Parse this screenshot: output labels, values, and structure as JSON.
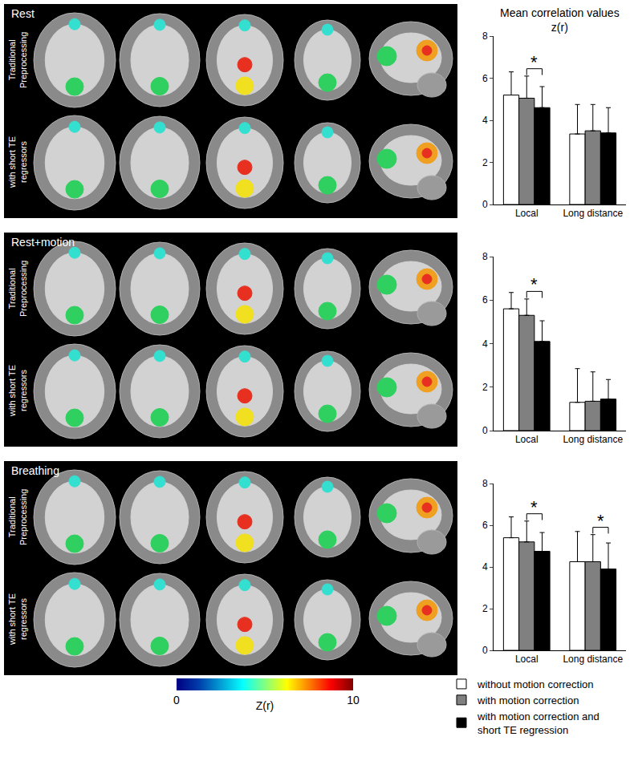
{
  "panels": [
    {
      "label": "Rest",
      "rows": [
        "Traditional Preprocessing",
        "with short TE regressors"
      ]
    },
    {
      "label": "Rest+motion",
      "rows": [
        "Traditional Preprocessing",
        "with short TE regressors"
      ]
    },
    {
      "label": "Breathing",
      "rows": [
        "Traditional Preprocessing",
        "with short TE regressors"
      ]
    }
  ],
  "colorbar": {
    "title": "Z(r)",
    "range": [
      0,
      10
    ],
    "ticks": [
      0,
      10
    ]
  },
  "chart_data": [
    {
      "type": "bar",
      "title": "Mean correlation values z(r)",
      "legend": "bottom right",
      "categories": [
        "Local",
        "Long distance"
      ],
      "series": [
        {
          "name": "without motion correction",
          "color": "#ffffff",
          "values": [
            5.2,
            3.35
          ],
          "errors": [
            1.1,
            1.4
          ]
        },
        {
          "name": "with motion correction",
          "color": "#808080",
          "values": [
            5.05,
            3.5
          ],
          "errors": [
            1.05,
            1.25
          ]
        },
        {
          "name": "with motion correction and short TE regression",
          "color": "#000000",
          "values": [
            4.6,
            3.4
          ],
          "errors": [
            1.0,
            1.2
          ]
        }
      ],
      "ylim": [
        0,
        8
      ],
      "yticks": [
        0,
        2,
        4,
        6,
        8
      ],
      "annotations": [
        {
          "text": "*",
          "category": "Local",
          "between": [
            1,
            2
          ]
        }
      ]
    },
    {
      "type": "bar",
      "categories": [
        "Local",
        "Long distance"
      ],
      "series": [
        {
          "name": "without motion correction",
          "color": "#ffffff",
          "values": [
            5.6,
            1.3
          ],
          "errors": [
            0.75,
            1.55
          ]
        },
        {
          "name": "with motion correction",
          "color": "#808080",
          "values": [
            5.3,
            1.35
          ],
          "errors": [
            0.75,
            1.35
          ]
        },
        {
          "name": "with motion correction and short TE regression",
          "color": "#000000",
          "values": [
            4.1,
            1.45
          ],
          "errors": [
            0.95,
            0.9
          ]
        }
      ],
      "ylim": [
        0,
        8
      ],
      "yticks": [
        0,
        2,
        4,
        6,
        8
      ],
      "annotations": [
        {
          "text": "*",
          "category": "Local",
          "between": [
            1,
            2
          ]
        }
      ]
    },
    {
      "type": "bar",
      "categories": [
        "Local",
        "Long distance"
      ],
      "series": [
        {
          "name": "without motion correction",
          "color": "#ffffff",
          "values": [
            5.4,
            4.25
          ],
          "errors": [
            1.0,
            1.45
          ]
        },
        {
          "name": "with motion correction",
          "color": "#808080",
          "values": [
            5.2,
            4.25
          ],
          "errors": [
            1.0,
            1.3
          ]
        },
        {
          "name": "with motion correction and short TE regression",
          "color": "#000000",
          "values": [
            4.75,
            3.9
          ],
          "errors": [
            0.9,
            1.25
          ]
        }
      ],
      "ylim": [
        0,
        8
      ],
      "yticks": [
        0,
        2,
        4,
        6,
        8
      ],
      "annotations": [
        {
          "text": "*",
          "category": "Local",
          "between": [
            1,
            2
          ]
        },
        {
          "text": "*",
          "category": "Long distance",
          "between": [
            1,
            2
          ]
        }
      ]
    }
  ]
}
